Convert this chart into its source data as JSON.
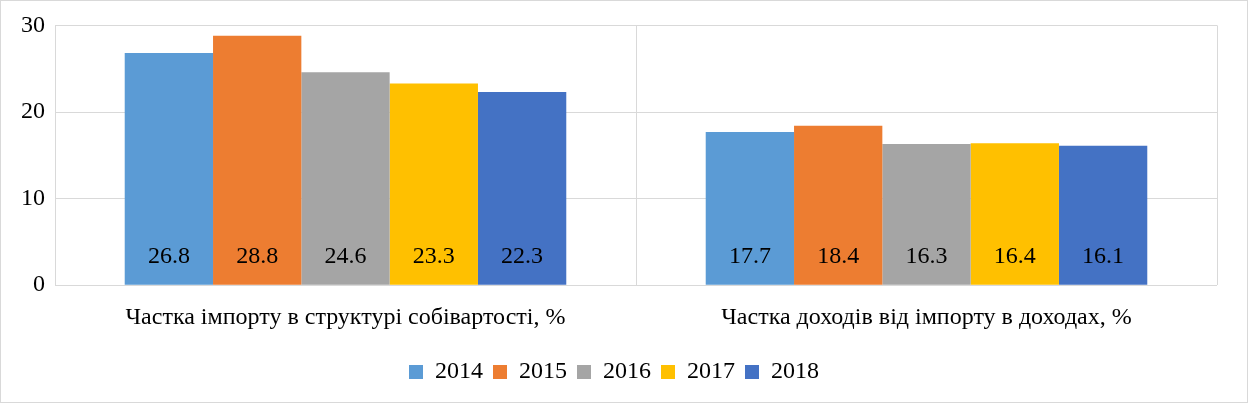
{
  "chart_data": {
    "type": "bar",
    "categories": [
      "Частка імпорту в структурі собівартості, %",
      "Частка доходів від імпорту в доходах, %"
    ],
    "series": [
      {
        "name": "2014",
        "color": "#5b9bd5",
        "values": [
          26.8,
          17.7
        ]
      },
      {
        "name": "2015",
        "color": "#ed7d31",
        "values": [
          28.8,
          18.4
        ]
      },
      {
        "name": "2016",
        "color": "#a5a5a5",
        "values": [
          24.6,
          16.3
        ]
      },
      {
        "name": "2017",
        "color": "#ffc000",
        "values": [
          23.3,
          16.4
        ]
      },
      {
        "name": "2018",
        "color": "#4472c4",
        "values": [
          22.3,
          16.1
        ]
      }
    ],
    "ylim": [
      0,
      30
    ],
    "yticks": [
      0,
      10,
      20,
      30
    ],
    "grid": true,
    "legend": "bottom",
    "data_labels": true
  }
}
